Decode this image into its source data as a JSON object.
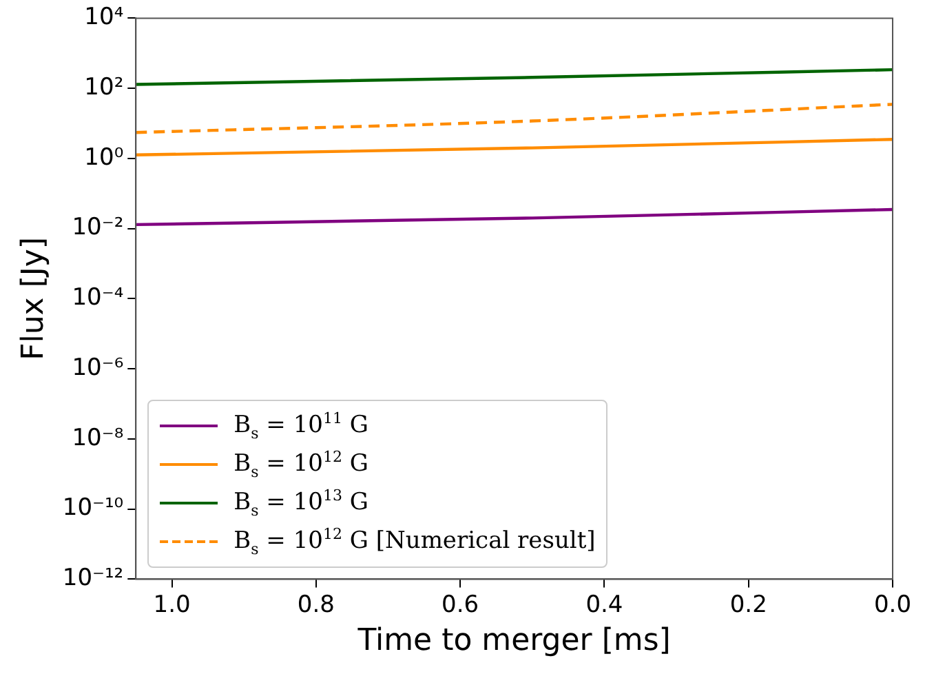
{
  "chart_data": {
    "type": "line",
    "xlabel": "Time to merger [ms]",
    "ylabel": "Flux [Jy]",
    "log": "y",
    "legend": "bottom left",
    "grid": false,
    "marker": "none",
    "xlim": [
      1.05,
      0
    ],
    "xticks": [
      {
        "value": 1,
        "label": "1.0"
      },
      0.8,
      0.6,
      0.4,
      0.2,
      {
        "value": 0,
        "label": "0.0"
      }
    ],
    "ylim": [
      1e-12,
      10000
    ],
    "yticks": [
      {
        "value": 1e-12,
        "label": "10⁻¹²"
      },
      {
        "value": 1e-10,
        "label": "10⁻¹⁰"
      },
      {
        "value": 1e-08,
        "label": "10⁻⁸"
      },
      {
        "value": 1e-06,
        "label": "10⁻⁶"
      },
      {
        "value": 0.0001,
        "label": "10⁻⁴"
      },
      {
        "value": 0.01,
        "label": "10⁻²"
      },
      {
        "value": 1,
        "label": "10⁰"
      },
      {
        "value": 100,
        "label": "10²"
      },
      {
        "value": 10000,
        "label": "10⁴"
      }
    ],
    "x": [
      1.05,
      0.5,
      0
    ],
    "series": [
      {
        "name": "B$_{s}$ = 10$^{11}$ G",
        "color": "#800080",
        "values": [
          0.013,
          0.02,
          0.035
        ]
      },
      {
        "name": "B$_{s}$ = 10$^{12}$ G",
        "color": "#ff8c00",
        "values": [
          1.26,
          2.0,
          3.5
        ]
      },
      {
        "name": "B$_{s}$ = 10$^{13}$ G",
        "color": "#006400",
        "values": [
          129,
          205,
          340
        ]
      },
      {
        "name": "B$_{s}$ = 10$^{12}$ G [Numerical result]",
        "color": "#ff8c00",
        "line_style": "dashed",
        "values": [
          5.5,
          11.7,
          35
        ]
      }
    ]
  }
}
